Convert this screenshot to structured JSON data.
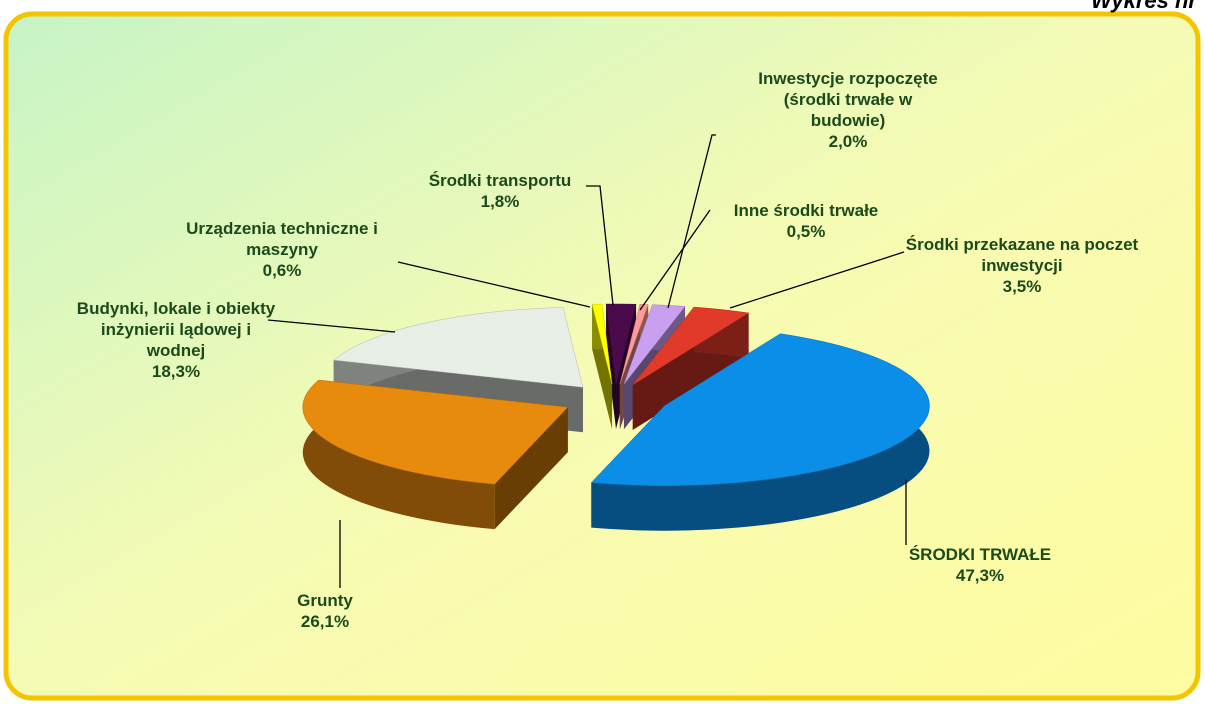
{
  "chart_data": {
    "type": "pie",
    "title": "Wykres nr",
    "categories": [
      "Urządzenia techniczne i maszyny",
      "Środki transportu",
      "Inne środki trwałe",
      "Inwestycje rozpoczęte (środki trwałe w budowie)",
      "Środki przekazane na poczet inwestycji",
      "ŚRODKI TRWAŁE",
      "Grunty",
      "Budynki, lokale  i obiekty inżynierii lądowej i wodnej"
    ],
    "values": [
      0.6,
      1.8,
      0.5,
      2.0,
      3.5,
      47.3,
      26.1,
      18.3
    ],
    "value_labels": [
      "0,6%",
      "1,8%",
      "0,5%",
      "2,0%",
      "3,5%",
      "47,3%",
      "26,1%",
      "18,3%"
    ],
    "colors": [
      "#ffff00",
      "#4b0a4b",
      "#ff9a9a",
      "#c9a0f0",
      "#e23a2a",
      "#0a8ee8",
      "#e88a0c",
      "#e6eee6"
    ]
  }
}
